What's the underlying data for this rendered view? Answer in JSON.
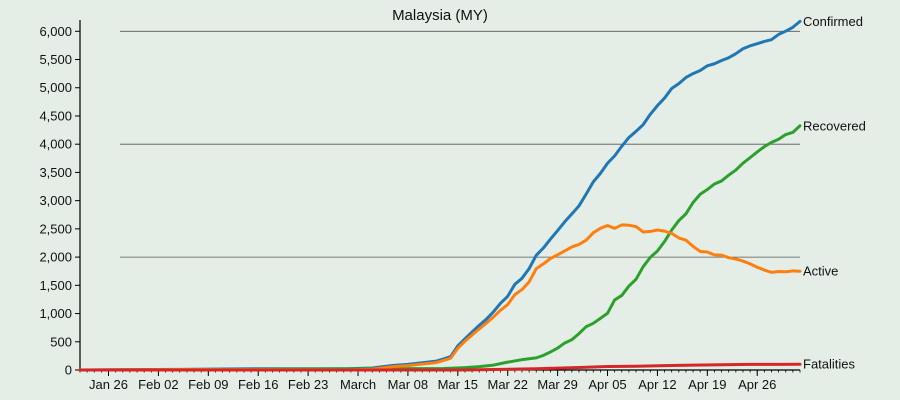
{
  "chart_data": {
    "type": "line",
    "title": "Malaysia (MY)",
    "xlabel": "",
    "ylabel": "",
    "x_start": "2020-01-22",
    "x_end": "2020-05-02",
    "x_ticks": [
      "Jan 26",
      "Feb 02",
      "Feb 09",
      "Feb 16",
      "Feb 23",
      "March",
      "Mar 08",
      "Mar 15",
      "Mar 22",
      "Mar 29",
      "Apr 05",
      "Apr 12",
      "Apr 19",
      "Apr 26"
    ],
    "x_tick_dates": [
      "2020-01-26",
      "2020-02-02",
      "2020-02-09",
      "2020-02-16",
      "2020-02-23",
      "2020-03-01",
      "2020-03-08",
      "2020-03-15",
      "2020-03-22",
      "2020-03-29",
      "2020-04-05",
      "2020-04-12",
      "2020-04-19",
      "2020-04-26"
    ],
    "ylim": [
      0,
      6200
    ],
    "y_ticks": [
      0,
      500,
      1000,
      1500,
      2000,
      2500,
      3000,
      3500,
      4000,
      4500,
      5000,
      5500,
      6000
    ],
    "y_tick_labels": [
      "0",
      "500",
      "1,000",
      "1,500",
      "2,000",
      "2,500",
      "3,000",
      "3,500",
      "4,000",
      "4,500",
      "5,000",
      "5,500",
      "6,000"
    ],
    "gridlines_y": [
      2000,
      4000,
      6000
    ],
    "series": [
      {
        "name": "Confirmed",
        "color": "#1f77b4",
        "points": [
          [
            "2020-01-22",
            0
          ],
          [
            "2020-01-25",
            3
          ],
          [
            "2020-02-05",
            12
          ],
          [
            "2020-02-16",
            22
          ],
          [
            "2020-02-29",
            25
          ],
          [
            "2020-03-03",
            36
          ],
          [
            "2020-03-06",
            83
          ],
          [
            "2020-03-08",
            99
          ],
          [
            "2020-03-10",
            129
          ],
          [
            "2020-03-12",
            158
          ],
          [
            "2020-03-13",
            197
          ],
          [
            "2020-03-14",
            238
          ],
          [
            "2020-03-15",
            428
          ],
          [
            "2020-03-16",
            553
          ],
          [
            "2020-03-17",
            673
          ],
          [
            "2020-03-18",
            790
          ],
          [
            "2020-03-19",
            900
          ],
          [
            "2020-03-20",
            1030
          ],
          [
            "2020-03-21",
            1183
          ],
          [
            "2020-03-22",
            1306
          ],
          [
            "2020-03-23",
            1518
          ],
          [
            "2020-03-24",
            1624
          ],
          [
            "2020-03-25",
            1796
          ],
          [
            "2020-03-26",
            2031
          ],
          [
            "2020-03-27",
            2161
          ],
          [
            "2020-03-28",
            2320
          ],
          [
            "2020-03-29",
            2470
          ],
          [
            "2020-03-30",
            2626
          ],
          [
            "2020-03-31",
            2766
          ],
          [
            "2020-04-01",
            2908
          ],
          [
            "2020-04-02",
            3116
          ],
          [
            "2020-04-03",
            3333
          ],
          [
            "2020-04-04",
            3483
          ],
          [
            "2020-04-05",
            3662
          ],
          [
            "2020-04-06",
            3793
          ],
          [
            "2020-04-07",
            3963
          ],
          [
            "2020-04-08",
            4119
          ],
          [
            "2020-04-09",
            4228
          ],
          [
            "2020-04-10",
            4346
          ],
          [
            "2020-04-11",
            4530
          ],
          [
            "2020-04-12",
            4683
          ],
          [
            "2020-04-13",
            4817
          ],
          [
            "2020-04-14",
            4987
          ],
          [
            "2020-04-15",
            5072
          ],
          [
            "2020-04-16",
            5182
          ],
          [
            "2020-04-17",
            5251
          ],
          [
            "2020-04-18",
            5305
          ],
          [
            "2020-04-19",
            5389
          ],
          [
            "2020-04-20",
            5425
          ],
          [
            "2020-04-21",
            5482
          ],
          [
            "2020-04-22",
            5532
          ],
          [
            "2020-04-23",
            5603
          ],
          [
            "2020-04-24",
            5691
          ],
          [
            "2020-04-25",
            5742
          ],
          [
            "2020-04-26",
            5780
          ],
          [
            "2020-04-27",
            5820
          ],
          [
            "2020-04-28",
            5851
          ],
          [
            "2020-04-29",
            5945
          ],
          [
            "2020-04-30",
            6002
          ],
          [
            "2020-05-01",
            6071
          ],
          [
            "2020-05-02",
            6176
          ]
        ]
      },
      {
        "name": "Recovered",
        "color": "#2ca02c",
        "points": [
          [
            "2020-01-22",
            0
          ],
          [
            "2020-02-07",
            2
          ],
          [
            "2020-02-20",
            15
          ],
          [
            "2020-03-01",
            22
          ],
          [
            "2020-03-13",
            27
          ],
          [
            "2020-03-16",
            42
          ],
          [
            "2020-03-18",
            60
          ],
          [
            "2020-03-20",
            87
          ],
          [
            "2020-03-22",
            139
          ],
          [
            "2020-03-24",
            183
          ],
          [
            "2020-03-26",
            215
          ],
          [
            "2020-03-27",
            259
          ],
          [
            "2020-03-28",
            320
          ],
          [
            "2020-03-29",
            388
          ],
          [
            "2020-03-30",
            479
          ],
          [
            "2020-03-31",
            537
          ],
          [
            "2020-04-01",
            645
          ],
          [
            "2020-04-02",
            767
          ],
          [
            "2020-04-03",
            827
          ],
          [
            "2020-04-04",
            915
          ],
          [
            "2020-04-05",
            1005
          ],
          [
            "2020-04-06",
            1241
          ],
          [
            "2020-04-07",
            1321
          ],
          [
            "2020-04-08",
            1487
          ],
          [
            "2020-04-09",
            1608
          ],
          [
            "2020-04-10",
            1830
          ],
          [
            "2020-04-11",
            1995
          ],
          [
            "2020-04-12",
            2108
          ],
          [
            "2020-04-13",
            2276
          ],
          [
            "2020-04-14",
            2478
          ],
          [
            "2020-04-15",
            2647
          ],
          [
            "2020-04-16",
            2766
          ],
          [
            "2020-04-17",
            2967
          ],
          [
            "2020-04-18",
            3113
          ],
          [
            "2020-04-19",
            3197
          ],
          [
            "2020-04-20",
            3295
          ],
          [
            "2020-04-21",
            3349
          ],
          [
            "2020-04-22",
            3452
          ],
          [
            "2020-04-23",
            3542
          ],
          [
            "2020-04-24",
            3663
          ],
          [
            "2020-04-25",
            3762
          ],
          [
            "2020-04-26",
            3862
          ],
          [
            "2020-04-27",
            3957
          ],
          [
            "2020-04-28",
            4032
          ],
          [
            "2020-04-29",
            4087
          ],
          [
            "2020-04-30",
            4171
          ],
          [
            "2020-05-01",
            4210
          ],
          [
            "2020-05-02",
            4326
          ]
        ]
      },
      {
        "name": "Active",
        "color": "#ff7f0e",
        "points": [
          [
            "2020-01-22",
            0
          ],
          [
            "2020-01-25",
            3
          ],
          [
            "2020-02-05",
            10
          ],
          [
            "2020-02-16",
            7
          ],
          [
            "2020-02-29",
            3
          ],
          [
            "2020-03-03",
            14
          ],
          [
            "2020-03-06",
            61
          ],
          [
            "2020-03-08",
            77
          ],
          [
            "2020-03-10",
            105
          ],
          [
            "2020-03-12",
            131
          ],
          [
            "2020-03-13",
            170
          ],
          [
            "2020-03-14",
            210
          ],
          [
            "2020-03-15",
            385
          ],
          [
            "2020-03-16",
            510
          ],
          [
            "2020-03-17",
            620
          ],
          [
            "2020-03-18",
            726
          ],
          [
            "2020-03-19",
            830
          ],
          [
            "2020-03-20",
            940
          ],
          [
            "2020-03-21",
            1060
          ],
          [
            "2020-03-22",
            1160
          ],
          [
            "2020-03-23",
            1335
          ],
          [
            "2020-03-24",
            1425
          ],
          [
            "2020-03-25",
            1560
          ],
          [
            "2020-03-26",
            1795
          ],
          [
            "2020-03-27",
            1880
          ],
          [
            "2020-03-28",
            1975
          ],
          [
            "2020-03-29",
            2040
          ],
          [
            "2020-03-30",
            2110
          ],
          [
            "2020-03-31",
            2180
          ],
          [
            "2020-04-01",
            2225
          ],
          [
            "2020-04-02",
            2300
          ],
          [
            "2020-04-03",
            2430
          ],
          [
            "2020-04-04",
            2510
          ],
          [
            "2020-04-05",
            2560
          ],
          [
            "2020-04-06",
            2510
          ],
          [
            "2020-04-07",
            2570
          ],
          [
            "2020-04-08",
            2565
          ],
          [
            "2020-04-09",
            2540
          ],
          [
            "2020-04-10",
            2445
          ],
          [
            "2020-04-11",
            2455
          ],
          [
            "2020-04-12",
            2480
          ],
          [
            "2020-04-13",
            2460
          ],
          [
            "2020-04-14",
            2420
          ],
          [
            "2020-04-15",
            2340
          ],
          [
            "2020-04-16",
            2300
          ],
          [
            "2020-04-17",
            2190
          ],
          [
            "2020-04-18",
            2100
          ],
          [
            "2020-04-19",
            2090
          ],
          [
            "2020-04-20",
            2040
          ],
          [
            "2020-04-21",
            2035
          ],
          [
            "2020-04-22",
            1990
          ],
          [
            "2020-04-23",
            1965
          ],
          [
            "2020-04-24",
            1930
          ],
          [
            "2020-04-25",
            1880
          ],
          [
            "2020-04-26",
            1820
          ],
          [
            "2020-04-27",
            1770
          ],
          [
            "2020-04-28",
            1730
          ],
          [
            "2020-04-29",
            1745
          ],
          [
            "2020-04-30",
            1740
          ],
          [
            "2020-05-01",
            1755
          ],
          [
            "2020-05-02",
            1750
          ]
        ]
      },
      {
        "name": "Fatalities",
        "color": "#d62728",
        "points": [
          [
            "2020-01-22",
            0
          ],
          [
            "2020-03-16",
            0
          ],
          [
            "2020-03-17",
            2
          ],
          [
            "2020-03-20",
            10
          ],
          [
            "2020-03-23",
            15
          ],
          [
            "2020-03-26",
            23
          ],
          [
            "2020-03-29",
            34
          ],
          [
            "2020-04-01",
            45
          ],
          [
            "2020-04-05",
            61
          ],
          [
            "2020-04-09",
            67
          ],
          [
            "2020-04-13",
            77
          ],
          [
            "2020-04-17",
            86
          ],
          [
            "2020-04-21",
            92
          ],
          [
            "2020-04-25",
            99
          ],
          [
            "2020-04-29",
            100
          ],
          [
            "2020-05-02",
            103
          ]
        ]
      }
    ]
  }
}
